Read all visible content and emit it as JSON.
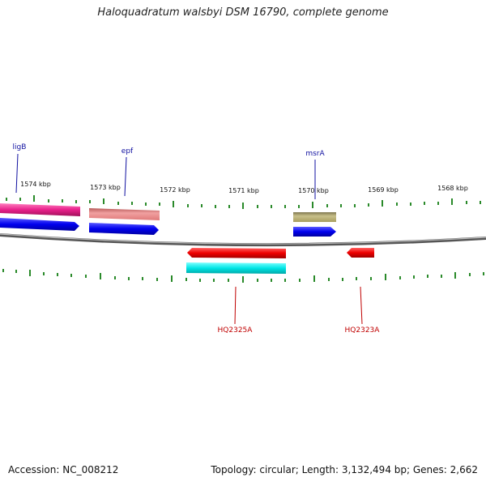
{
  "title": "Haloquadratum walsbyi DSM 16790, complete genome",
  "accession": "Accession: NC_008212",
  "summary": "Topology: circular; Length: 3,132,494 bp; Genes: 2,662",
  "ticks": [
    "1574 kbp",
    "1573 kbp",
    "1572 kbp",
    "1571 kbp",
    "1570 kbp",
    "1569 kbp",
    "1568 kbp"
  ],
  "genes_forward": [
    {
      "name": "ligB",
      "color": "#1010a0"
    },
    {
      "name": "epf",
      "color": "#1010a0"
    },
    {
      "name": "msrA",
      "color": "#1010a0"
    }
  ],
  "genes_reverse": [
    {
      "name": "HQ2325A",
      "color": "#c00000"
    },
    {
      "name": "HQ2323A",
      "color": "#c00000"
    }
  ],
  "colors": {
    "backbone": "#808080",
    "tick": "#2a8a2a",
    "cds": "#0000ee",
    "gene_fwd_ligB": "#e8208a",
    "gene_fwd_epf": "#e88a8a",
    "gene_fwd_msrA": "#b5ad6a",
    "cds_rev": "#ee0000",
    "gene_rev": "#00e6e6"
  }
}
